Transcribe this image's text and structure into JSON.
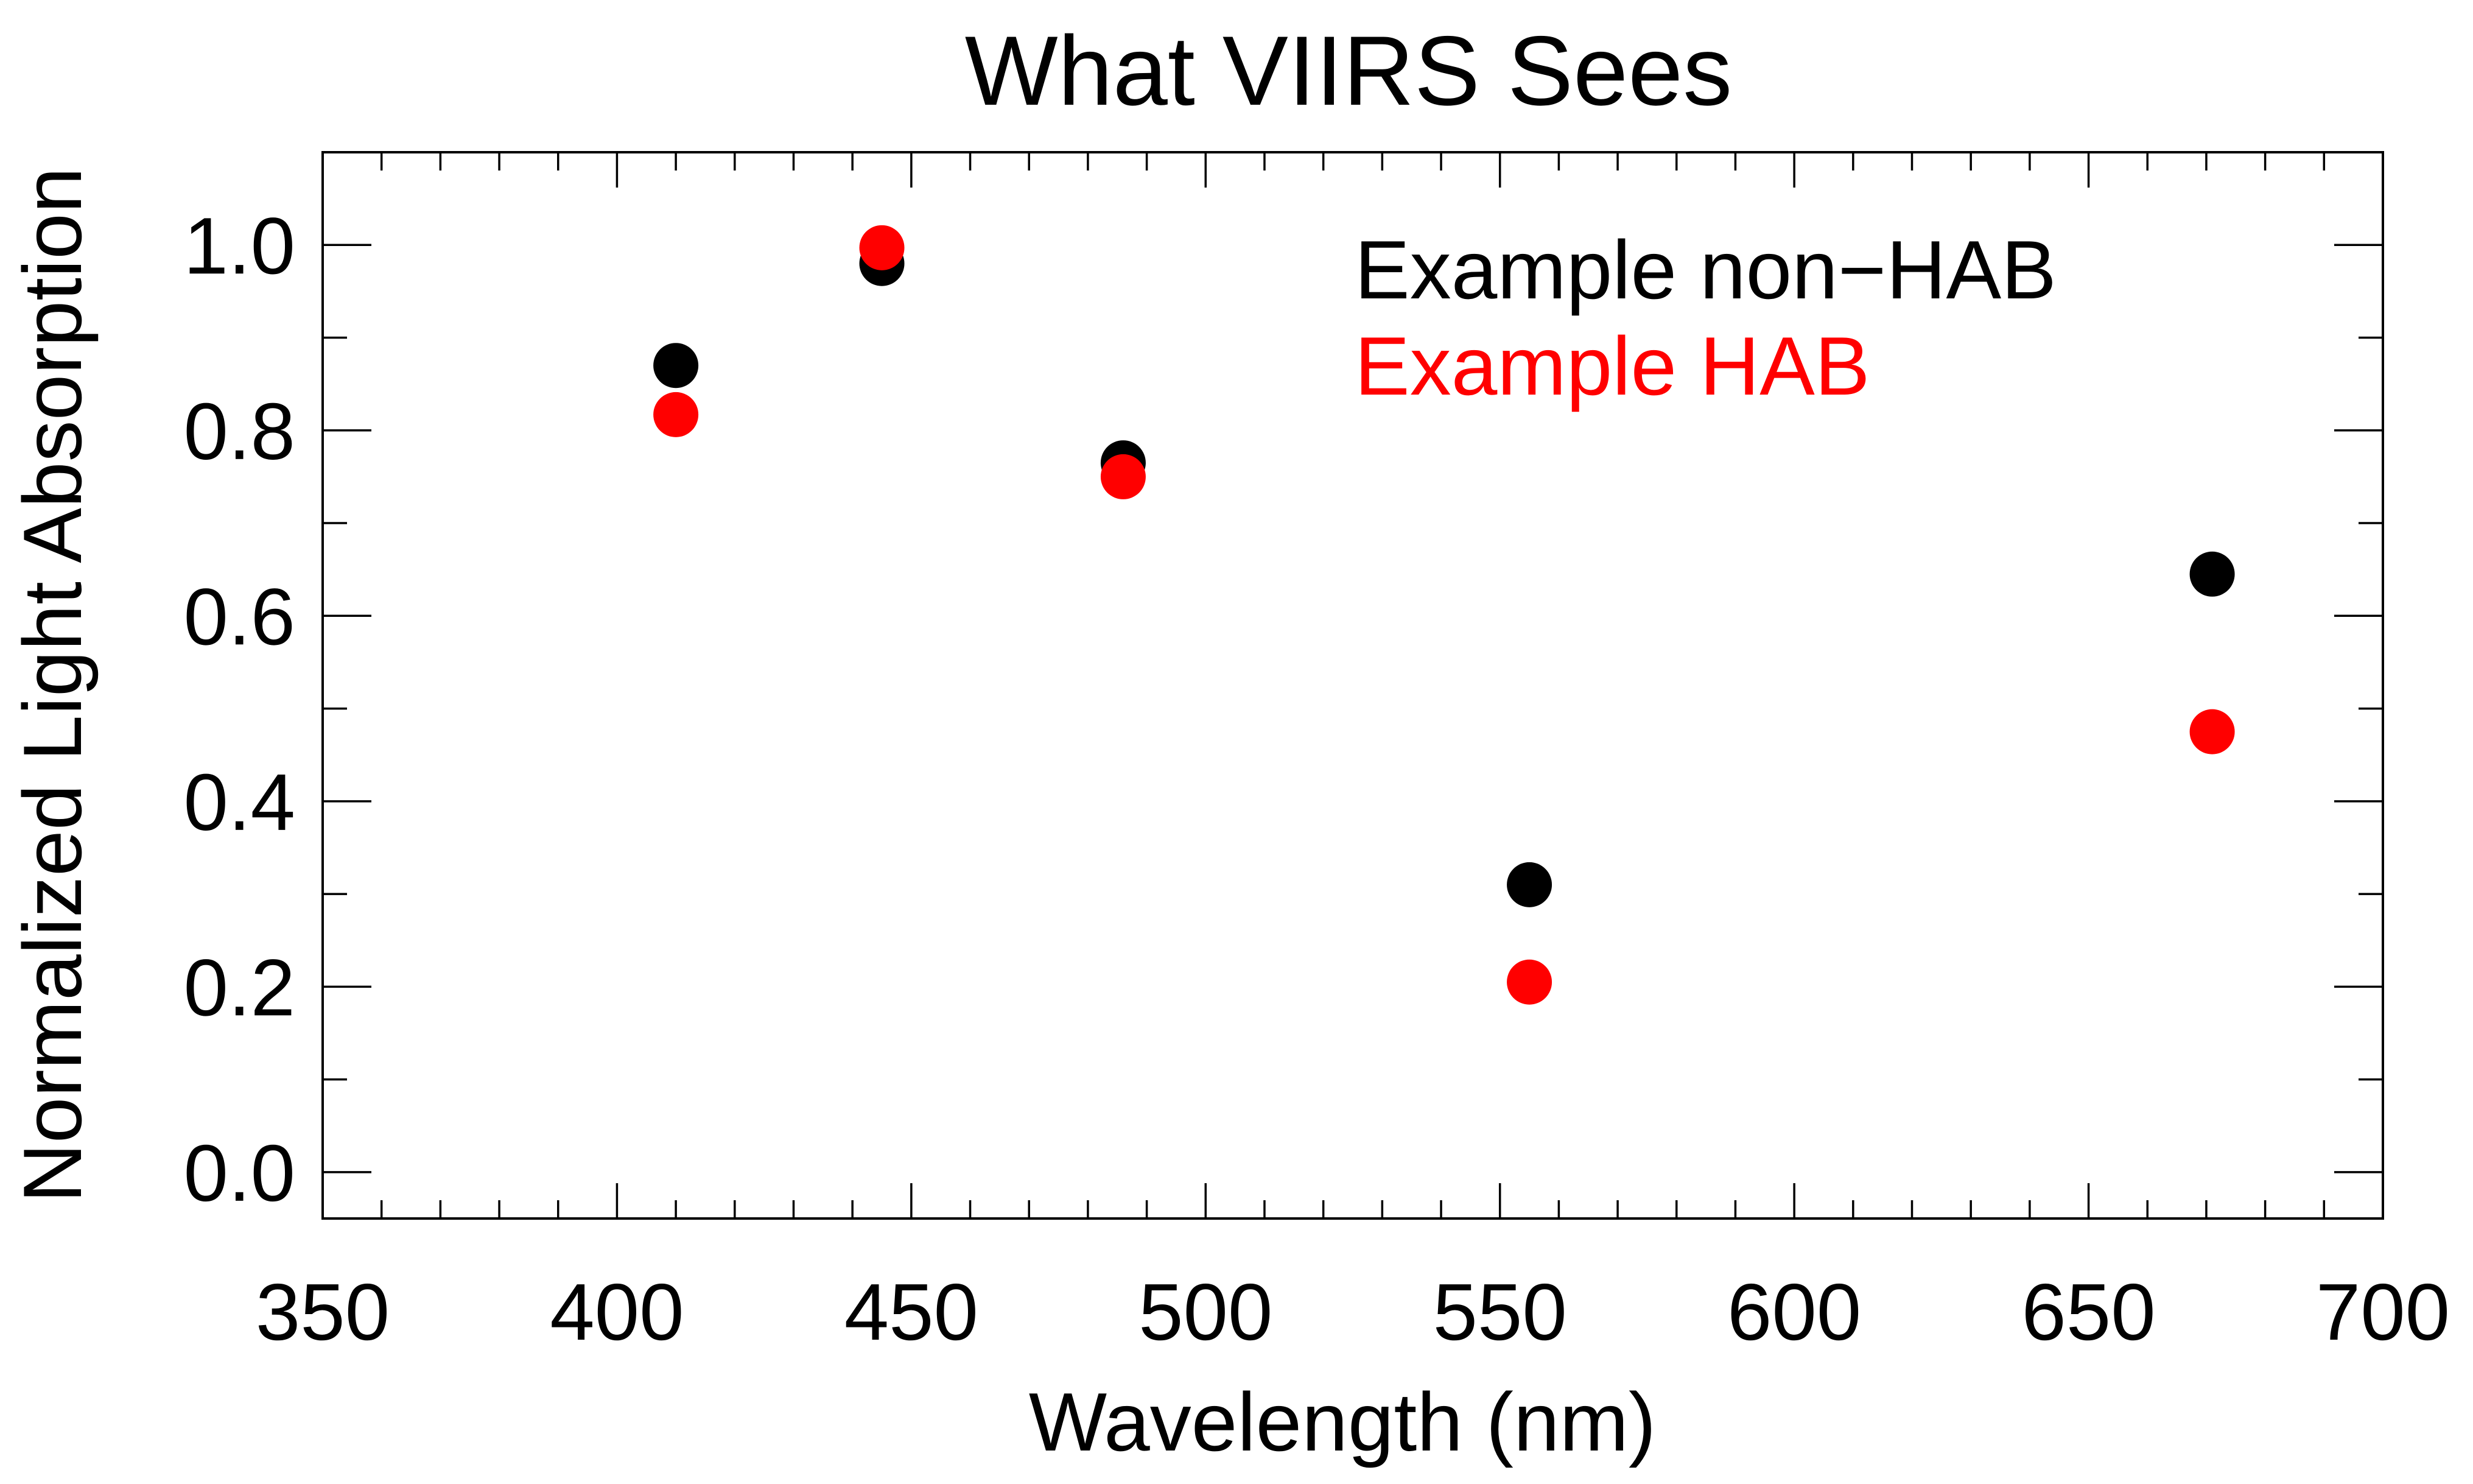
{
  "chart_data": {
    "type": "scatter",
    "title": "What VIIRS Sees",
    "xlabel": "Wavelength (nm)",
    "ylabel": "Normalized Light Absorption",
    "xlim": [
      350,
      700
    ],
    "ylim": [
      -0.05,
      1.1
    ],
    "xticks": [
      350,
      400,
      450,
      500,
      550,
      600,
      650,
      700
    ],
    "xtick_labels": [
      "350",
      "400",
      "450",
      "500",
      "550",
      "600",
      "650",
      "700"
    ],
    "yticks": [
      0.0,
      0.2,
      0.4,
      0.6,
      0.8,
      1.0
    ],
    "ytick_labels": [
      "0.0",
      "0.2",
      "0.4",
      "0.6",
      "0.8",
      "1.0"
    ],
    "grid": false,
    "legend_position": "top-right",
    "series": [
      {
        "name": "Example non−HAB",
        "color": "#000000",
        "points": [
          {
            "x": 410,
            "y": 0.87
          },
          {
            "x": 445,
            "y": 0.98
          },
          {
            "x": 486,
            "y": 0.765
          },
          {
            "x": 555,
            "y": 0.31
          },
          {
            "x": 671,
            "y": 0.645
          }
        ]
      },
      {
        "name": "Example HAB",
        "color": "#ff0000",
        "points": [
          {
            "x": 410,
            "y": 0.817
          },
          {
            "x": 445,
            "y": 0.997
          },
          {
            "x": 486,
            "y": 0.75
          },
          {
            "x": 555,
            "y": 0.205
          },
          {
            "x": 671,
            "y": 0.475
          }
        ]
      }
    ]
  }
}
